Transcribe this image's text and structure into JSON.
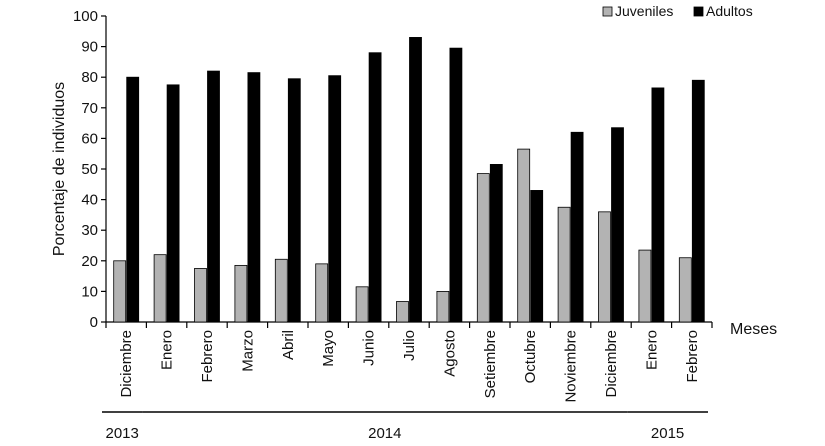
{
  "chart_data": {
    "type": "bar",
    "title": "",
    "xlabel": "Meses",
    "ylabel": "Porcentaje de individuos",
    "ylim": [
      0,
      100
    ],
    "yticks": [
      0,
      10,
      20,
      30,
      40,
      50,
      60,
      70,
      80,
      90,
      100
    ],
    "legend_position": "top-right",
    "grid": false,
    "categories": [
      "Diciembre",
      "Enero",
      "Febrero",
      "Marzo",
      "Abril",
      "Mayo",
      "Junio",
      "Julio",
      "Agosto",
      "Setiembre",
      "Octubre",
      "Noviembre",
      "Diciembre",
      "Enero",
      "Febrero"
    ],
    "series": [
      {
        "name": "Juveniles",
        "color": "#b3b3b3",
        "values": [
          20,
          22,
          17.5,
          18.5,
          20.5,
          19,
          11.5,
          6.7,
          10,
          48.5,
          56.5,
          37.5,
          36,
          23.5,
          21
        ]
      },
      {
        "name": "Adultos",
        "color": "#000000",
        "values": [
          80,
          77.5,
          82,
          81.5,
          79.5,
          80.5,
          88,
          93,
          89.5,
          51.5,
          43,
          62,
          63.5,
          76.5,
          79
        ]
      }
    ],
    "year_groups": [
      {
        "label": "2013",
        "from": 0,
        "to": 0
      },
      {
        "label": "2014",
        "from": 1,
        "to": 12
      },
      {
        "label": "2015",
        "from": 13,
        "to": 14
      }
    ]
  }
}
